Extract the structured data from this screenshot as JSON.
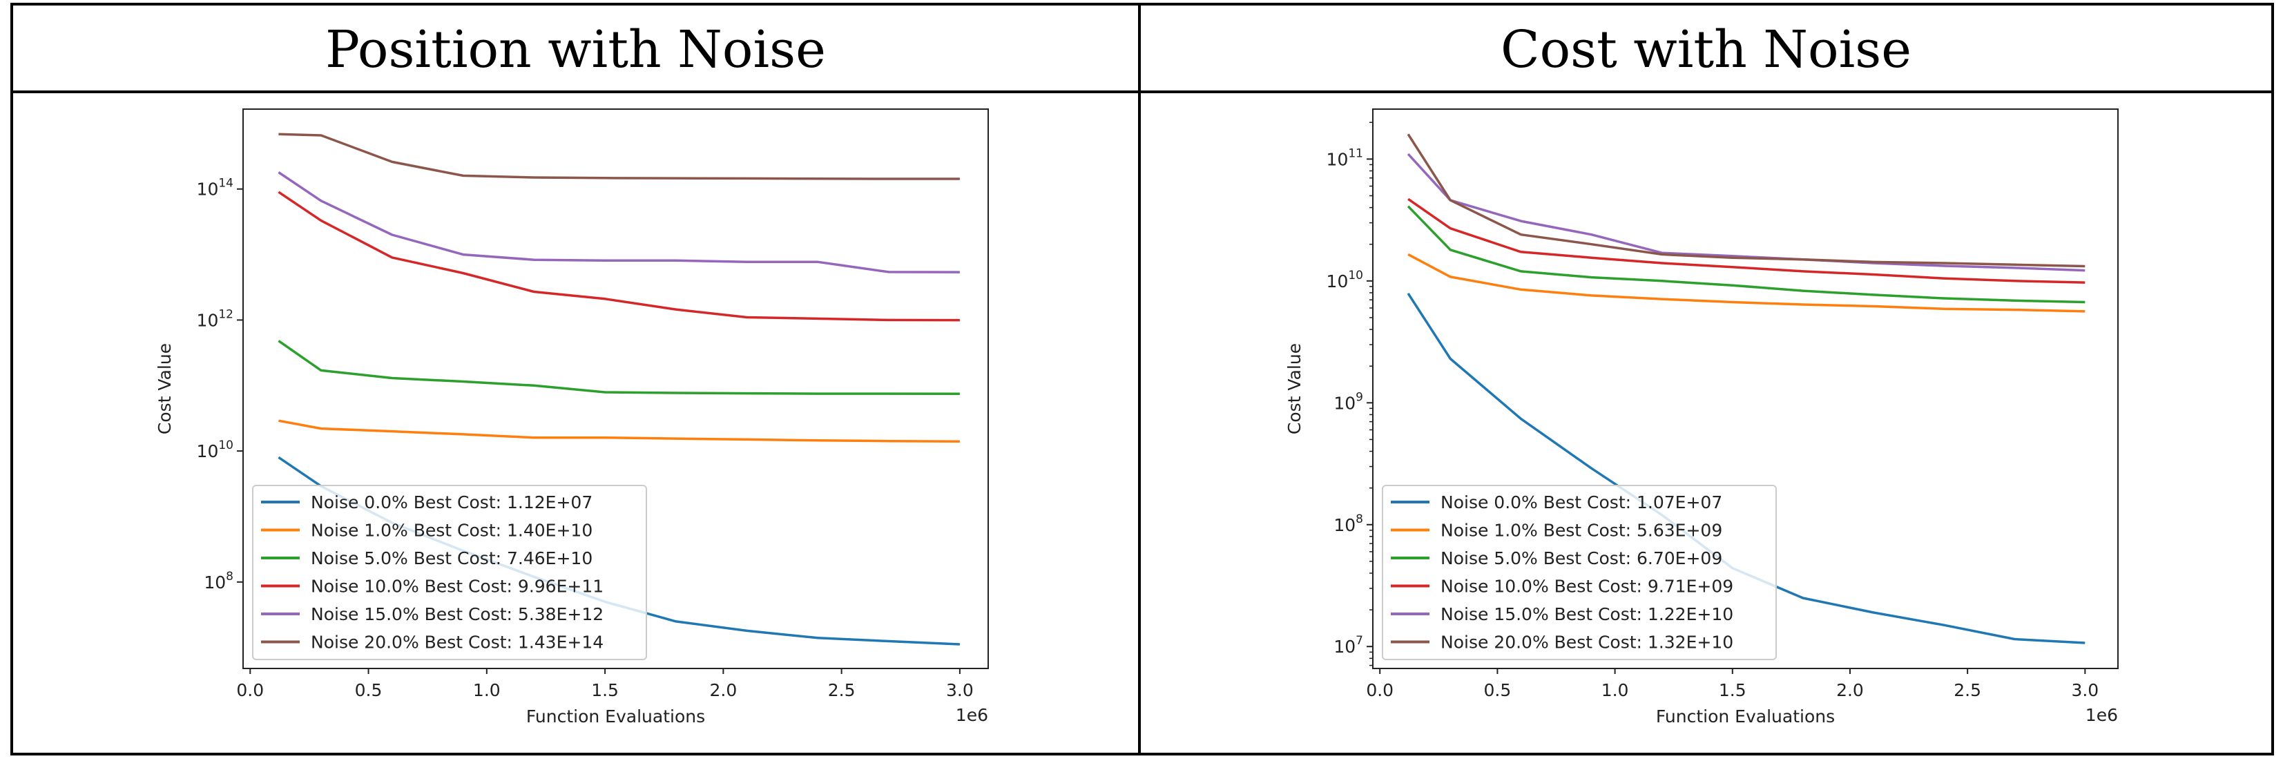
{
  "table": {
    "headers": [
      "Position with Noise",
      "Cost with Noise"
    ]
  },
  "colors": [
    "#1f77b4",
    "#ff7f0e",
    "#2ca02c",
    "#d62728",
    "#9467bd",
    "#8c564b"
  ],
  "chart_data": [
    {
      "type": "line",
      "title": "Position with Noise",
      "xlabel": "Function Evaluations",
      "x_offset_label": "1e6",
      "ylabel": "Cost Value",
      "yscale": "log",
      "xlim": [
        -0.03,
        3.12
      ],
      "ylim_log10": [
        6.68,
        15.22
      ],
      "xticks": [
        "0.0",
        "0.5",
        "1.0",
        "1.5",
        "2.0",
        "2.5",
        "3.0"
      ],
      "yticks": [
        {
          "base": "10",
          "exp": "8"
        },
        {
          "base": "10",
          "exp": "10"
        },
        {
          "base": "10",
          "exp": "12"
        },
        {
          "base": "10",
          "exp": "14"
        }
      ],
      "legend_position": "lower-left",
      "x": [
        0.12,
        0.3,
        0.6,
        0.9,
        1.2,
        1.5,
        1.8,
        2.1,
        2.4,
        2.7,
        3.0
      ],
      "series": [
        {
          "name": "Noise  0.0% Best Cost: 1.12E+07",
          "values": [
            8000000000.0,
            2900000000.0,
            800000000.0,
            300000000.0,
            120000000.0,
            50000000.0,
            25000000.0,
            18000000.0,
            14000000.0,
            12500000.0,
            11200000.0
          ]
        },
        {
          "name": "Noise  1.0% Best Cost: 1.40E+10",
          "values": [
            29000000000.0,
            22000000000.0,
            20000000000.0,
            18000000000.0,
            16000000000.0,
            16000000000.0,
            15500000000.0,
            15000000000.0,
            14500000000.0,
            14200000000.0,
            14000000000.0
          ]
        },
        {
          "name": "Noise  5.0% Best Cost: 7.46E+10",
          "values": [
            480000000000.0,
            170000000000.0,
            130000000000.0,
            115000000000.0,
            100000000000.0,
            79000000000.0,
            77000000000.0,
            76000000000.0,
            75000000000.0,
            75000000000.0,
            74600000000.0
          ]
        },
        {
          "name": "Noise  10.0% Best Cost: 9.96E+11",
          "values": [
            90000000000000.0,
            33000000000000.0,
            9000000000000.0,
            5200000000000.0,
            2700000000000.0,
            2100000000000.0,
            1450000000000.0,
            1100000000000.0,
            1050000000000.0,
            1000000000000.0,
            996000000000.0
          ]
        },
        {
          "name": "Noise  15.0% Best Cost: 5.38E+12",
          "values": [
            180000000000000.0,
            66000000000000.0,
            20000000000000.0,
            10000000000000.0,
            8300000000000.0,
            8100000000000.0,
            8100000000000.0,
            7700000000000.0,
            7700000000000.0,
            5400000000000.0,
            5380000000000.0
          ]
        },
        {
          "name": "Noise  20.0% Best Cost: 1.43E+14",
          "values": [
            690000000000000.0,
            660000000000000.0,
            260000000000000.0,
            160000000000000.0,
            150000000000000.0,
            147000000000000.0,
            146000000000000.0,
            145000000000000.0,
            144000000000000.0,
            143000000000000.0,
            143000000000000.0
          ]
        }
      ]
    },
    {
      "type": "line",
      "title": "Cost with Noise",
      "xlabel": "Function Evaluations",
      "x_offset_label": "1e6",
      "ylabel": "Cost Value",
      "yscale": "log",
      "xlim": [
        -0.03,
        3.14
      ],
      "ylim_log10": [
        6.82,
        11.41
      ],
      "xticks": [
        "0.0",
        "0.5",
        "1.0",
        "1.5",
        "2.0",
        "2.5",
        "3.0"
      ],
      "yticks": [
        {
          "base": "10",
          "exp": "7"
        },
        {
          "base": "10",
          "exp": "8"
        },
        {
          "base": "10",
          "exp": "9"
        },
        {
          "base": "10",
          "exp": "10"
        },
        {
          "base": "10",
          "exp": "11"
        }
      ],
      "legend_position": "lower-left",
      "x": [
        0.12,
        0.3,
        0.6,
        0.9,
        1.2,
        1.5,
        1.8,
        2.1,
        2.4,
        2.7,
        3.0
      ],
      "series": [
        {
          "name": "Noise  0.0% Best Cost: 1.07E+07",
          "values": [
            7900000000.0,
            2300000000.0,
            740000000.0,
            290000000.0,
            120000000.0,
            44000000.0,
            25000000.0,
            19000000.0,
            15000000.0,
            11500000.0,
            10700000.0
          ]
        },
        {
          "name": "Noise  1.0% Best Cost: 5.63E+09",
          "values": [
            16500000000.0,
            10800000000.0,
            8500000000.0,
            7600000000.0,
            7100000000.0,
            6700000000.0,
            6400000000.0,
            6200000000.0,
            5900000000.0,
            5800000000.0,
            5630000000.0
          ]
        },
        {
          "name": "Noise  5.0% Best Cost: 6.70E+09",
          "values": [
            41000000000.0,
            18000000000.0,
            12000000000.0,
            10700000000.0,
            10000000000.0,
            9200000000.0,
            8300000000.0,
            7700000000.0,
            7200000000.0,
            6900000000.0,
            6700000000.0
          ]
        },
        {
          "name": "Noise  10.0% Best Cost: 9.71E+09",
          "values": [
            47000000000.0,
            27000000000.0,
            17300000000.0,
            15500000000.0,
            14000000000.0,
            13000000000.0,
            12000000000.0,
            11300000000.0,
            10500000000.0,
            10000000000.0,
            9710000000.0
          ]
        },
        {
          "name": "Noise  15.0% Best Cost: 1.22E+10",
          "values": [
            110000000000.0,
            46000000000.0,
            31000000000.0,
            24000000000.0,
            17000000000.0,
            16000000000.0,
            15000000000.0,
            14000000000.0,
            13300000000.0,
            12800000000.0,
            12200000000.0
          ]
        },
        {
          "name": "Noise  20.0% Best Cost: 1.32E+10",
          "values": [
            160000000000.0,
            46000000000.0,
            24000000000.0,
            20000000000.0,
            16500000000.0,
            15500000000.0,
            15000000000.0,
            14300000000.0,
            14000000000.0,
            13600000000.0,
            13200000000.0
          ]
        }
      ]
    }
  ]
}
